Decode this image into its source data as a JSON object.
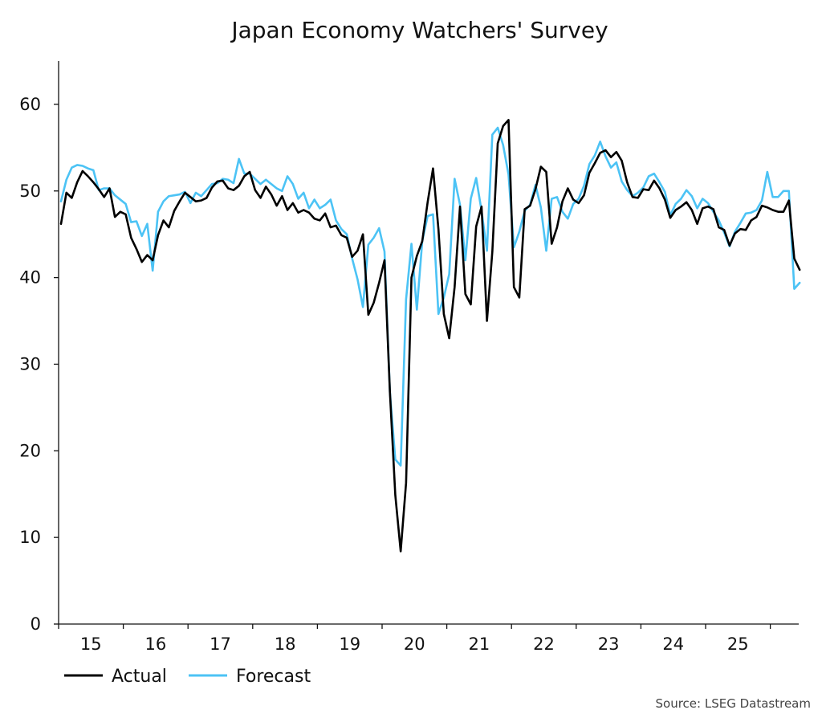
{
  "chart_data": {
    "type": "line",
    "title": "Japan Economy Watchers' Survey",
    "source": "Source: LSEG Datastream",
    "xlabel": "",
    "ylabel": "",
    "x_ticks": [
      "15",
      "16",
      "17",
      "18",
      "19",
      "20",
      "21",
      "22",
      "23",
      "24",
      "25"
    ],
    "y_ticks": [
      "0",
      "10",
      "20",
      "30",
      "40",
      "50",
      "60"
    ],
    "xlim": [
      "2015-01",
      "2025-09"
    ],
    "ylim": [
      0,
      65
    ],
    "grid": false,
    "legend_position": "bottom-left",
    "x_start": "2015-01",
    "frequency": "monthly",
    "series": [
      {
        "name": "Actual",
        "color": "#000000",
        "values": [
          46.2,
          49.8,
          49.2,
          51.0,
          52.3,
          51.7,
          51.0,
          50.2,
          49.3,
          50.3,
          47.0,
          47.6,
          47.3,
          44.6,
          43.3,
          41.8,
          42.6,
          42.0,
          44.9,
          46.6,
          45.8,
          47.7,
          48.8,
          49.8,
          49.3,
          48.8,
          48.9,
          49.2,
          50.4,
          51.1,
          51.2,
          50.3,
          50.1,
          50.6,
          51.7,
          52.2,
          50.1,
          49.2,
          50.5,
          49.6,
          48.3,
          49.4,
          47.8,
          48.6,
          47.5,
          47.8,
          47.5,
          46.8,
          46.6,
          47.4,
          45.8,
          46.0,
          44.9,
          44.6,
          42.4,
          43.1,
          45.0,
          35.7,
          37.1,
          39.4,
          42.0,
          26.8,
          14.9,
          8.4,
          16.3,
          40.0,
          42.5,
          44.2,
          48.7,
          52.6,
          45.6,
          35.8,
          33.0,
          38.9,
          48.2,
          38.1,
          36.9,
          45.9,
          48.2,
          35.0,
          43.0,
          55.5,
          57.5,
          58.2,
          38.9,
          37.7,
          47.9,
          48.3,
          50.2,
          52.8,
          52.2,
          43.9,
          45.8,
          48.8,
          50.3,
          49.0,
          48.6,
          49.5,
          52.1,
          53.2,
          54.4,
          54.7,
          53.9,
          54.5,
          53.5,
          51.0,
          49.3,
          49.2,
          50.2,
          50.1,
          51.2,
          50.3,
          49.0,
          46.9,
          47.8,
          48.2,
          48.7,
          47.8,
          46.2,
          48.0,
          48.2,
          47.9,
          45.8,
          45.5,
          43.7,
          45.1,
          45.6,
          45.5,
          46.6,
          47.0,
          48.3,
          48.1,
          47.8,
          47.6,
          47.6,
          48.9,
          42.2,
          40.9
        ]
      },
      {
        "name": "Forecast",
        "color": "#4cc3f5",
        "values": [
          48.8,
          51.3,
          52.7,
          53.0,
          52.9,
          52.6,
          52.4,
          50.1,
          50.3,
          50.3,
          49.5,
          49.0,
          48.5,
          46.4,
          46.5,
          44.8,
          46.2,
          40.8,
          47.6,
          48.8,
          49.4,
          49.5,
          49.6,
          49.9,
          48.6,
          49.8,
          49.4,
          50.1,
          50.8,
          50.9,
          51.4,
          51.3,
          50.9,
          53.7,
          52.0,
          52.0,
          51.4,
          50.8,
          51.3,
          50.8,
          50.3,
          50.0,
          51.7,
          50.8,
          49.1,
          49.8,
          48.0,
          49.0,
          48.0,
          48.4,
          49.0,
          46.6,
          45.6,
          45.0,
          42.2,
          39.8,
          36.6,
          43.8,
          44.6,
          45.7,
          43.0,
          26.8,
          19.0,
          18.3,
          37.5,
          43.9,
          36.3,
          44.2,
          47.1,
          47.3,
          35.8,
          37.7,
          40.4,
          51.4,
          48.4,
          42.0,
          49.1,
          51.5,
          47.7,
          43.1,
          56.5,
          57.3,
          55.3,
          51.9,
          43.5,
          45.3,
          47.7,
          48.4,
          50.7,
          48.1,
          43.1,
          49.1,
          49.3,
          47.6,
          46.8,
          48.5,
          49.1,
          50.6,
          53.1,
          54.1,
          55.7,
          54.0,
          52.7,
          53.3,
          51.1,
          50.1,
          49.4,
          49.8,
          50.4,
          51.7,
          52.0,
          51.0,
          49.9,
          47.2,
          48.5,
          49.1,
          50.1,
          49.4,
          48.0,
          49.1,
          48.6,
          47.6,
          46.6,
          45.2,
          43.6,
          45.3,
          46.3,
          47.4,
          47.5,
          47.8,
          48.9,
          52.2,
          49.3,
          49.3,
          50.0,
          50.0,
          38.7,
          39.4
        ]
      }
    ]
  }
}
